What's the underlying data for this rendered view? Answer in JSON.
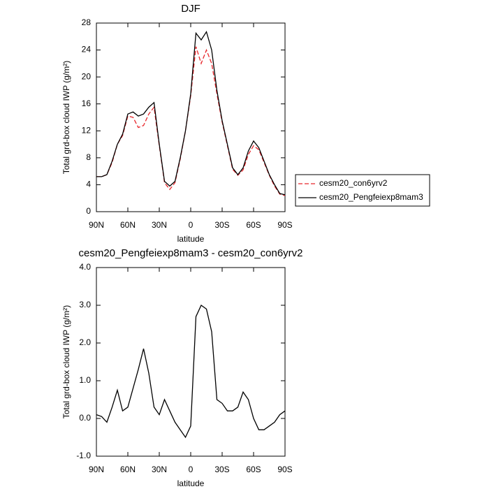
{
  "chart_data": [
    {
      "type": "line",
      "title": "DJF",
      "xlabel": "latitude",
      "ylabel": "Total grd-box cloud IWP (g/m²)",
      "x": [
        90,
        85,
        80,
        75,
        70,
        65,
        60,
        55,
        50,
        45,
        40,
        35,
        30,
        25,
        20,
        15,
        10,
        5,
        0,
        -5,
        -10,
        -15,
        -20,
        -25,
        -30,
        -35,
        -40,
        -45,
        -50,
        -55,
        -60,
        -65,
        -70,
        -75,
        -80,
        -85,
        -90
      ],
      "series": [
        {
          "name": "cesm20_con6yrv2",
          "color": "#e8262b",
          "line_style": "dashed",
          "values": [
            5.2,
            5.2,
            5.5,
            7.3,
            10,
            11.3,
            14.2,
            14.0,
            12.5,
            12.8,
            14.5,
            15.5,
            9.8,
            4.3,
            3.3,
            4.3,
            7.8,
            12,
            17.2,
            24.5,
            22,
            24,
            22,
            17.5,
            13.3,
            9.8,
            6.3,
            5.4,
            6.2,
            8.5,
            9.8,
            9.2,
            7.3,
            5.4,
            3.8,
            2.6,
            2.4
          ]
        },
        {
          "name": "cesm20_Pengfeiexp8mam3",
          "color": "#000000",
          "line_style": "solid",
          "values": [
            5.2,
            5.2,
            5.5,
            7.5,
            10,
            11.5,
            14.5,
            14.8,
            14.2,
            14.5,
            15.5,
            16.2,
            10,
            4.5,
            3.8,
            4.5,
            8,
            12,
            17.5,
            26.5,
            25.5,
            26.7,
            24,
            18,
            13.5,
            10,
            6.5,
            5.5,
            6.5,
            9,
            10.5,
            9.5,
            7.5,
            5.5,
            4,
            2.7,
            2.5
          ]
        }
      ],
      "xlim": [
        90,
        -90
      ],
      "xticks": [
        {
          "value": 90,
          "label": "90N"
        },
        {
          "value": 60,
          "label": "60N"
        },
        {
          "value": 30,
          "label": "30N"
        },
        0,
        {
          "value": -30,
          "label": "30S"
        },
        {
          "value": -60,
          "label": "60S"
        },
        {
          "value": -90,
          "label": "90S"
        }
      ],
      "ylim": [
        0,
        28
      ],
      "yticks": [
        0,
        4,
        8,
        12,
        16,
        20,
        24,
        28
      ],
      "legend": "right"
    },
    {
      "type": "line",
      "title": "cesm20_Pengfeiexp8mam3 - cesm20_con6yrv2",
      "xlabel": "latitude",
      "ylabel": "Total grd-box cloud IWP (g/m²)",
      "x": [
        90,
        85,
        80,
        75,
        70,
        65,
        60,
        55,
        50,
        45,
        40,
        35,
        30,
        25,
        20,
        15,
        10,
        5,
        0,
        -5,
        -10,
        -15,
        -20,
        -25,
        -30,
        -35,
        -40,
        -45,
        -50,
        -55,
        -60,
        -65,
        -70,
        -75,
        -80,
        -85,
        -90
      ],
      "color": "#000000",
      "values": [
        0.1,
        0.05,
        -0.1,
        0.3,
        0.75,
        0.2,
        0.3,
        0.8,
        1.3,
        1.85,
        1.2,
        0.3,
        0.1,
        0.5,
        0.2,
        -0.1,
        -0.3,
        -0.5,
        -0.2,
        2.7,
        3.0,
        2.9,
        2.3,
        0.5,
        0.4,
        0.2,
        0.2,
        0.3,
        0.7,
        0.5,
        0.0,
        -0.3,
        -0.3,
        -0.2,
        -0.1,
        0.1,
        0.2
      ],
      "xlim": [
        90,
        -90
      ],
      "xticks": [
        {
          "value": 90,
          "label": "90N"
        },
        {
          "value": 60,
          "label": "60N"
        },
        {
          "value": 30,
          "label": "30N"
        },
        0,
        {
          "value": -30,
          "label": "30S"
        },
        {
          "value": -60,
          "label": "60S"
        },
        {
          "value": -90,
          "label": "90S"
        }
      ],
      "ylim": [
        -1,
        4
      ],
      "yticks": [
        {
          "value": -1,
          "label": "-1.0"
        },
        {
          "value": 0,
          "label": "0.0"
        },
        {
          "value": 1,
          "label": "1.0"
        },
        {
          "value": 2,
          "label": "2.0"
        },
        {
          "value": 3,
          "label": "3.0"
        },
        {
          "value": 4,
          "label": "4.0"
        }
      ]
    }
  ]
}
